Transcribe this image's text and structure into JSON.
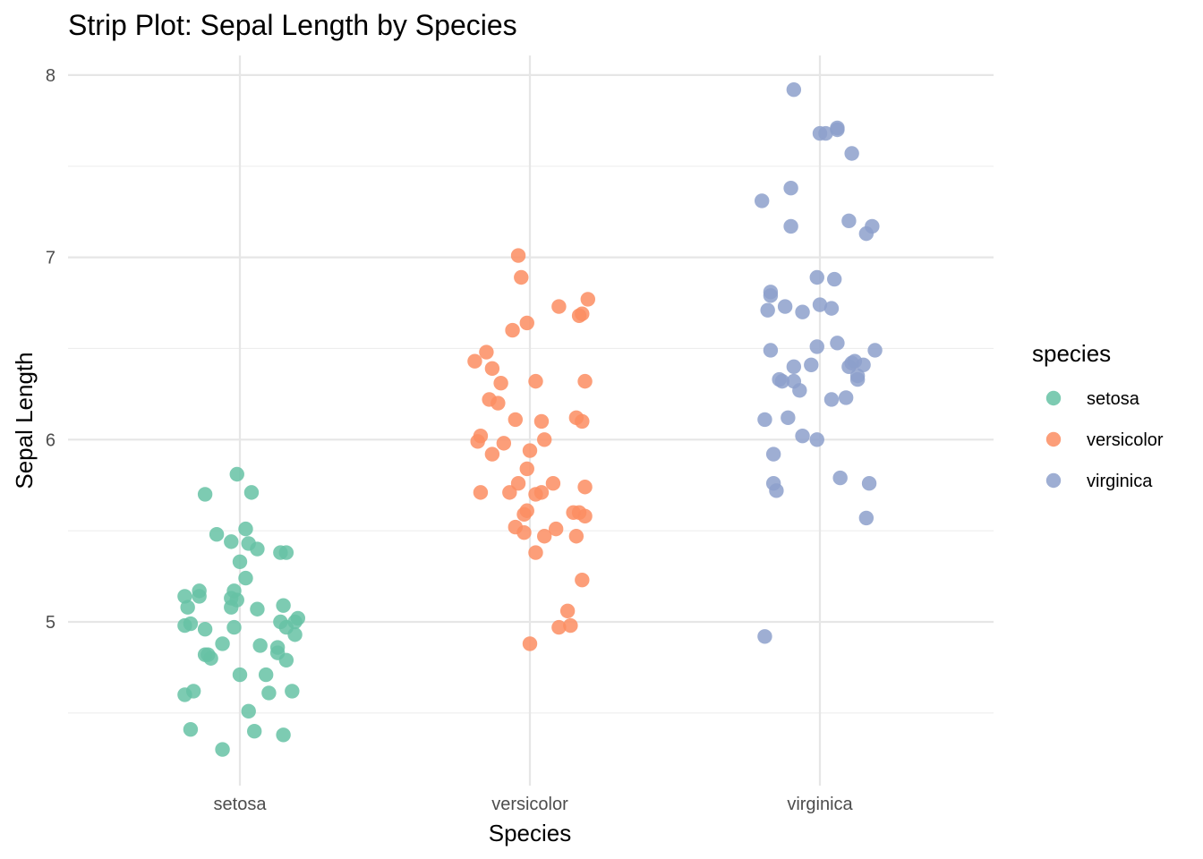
{
  "chart_data": {
    "type": "scatter",
    "title": "Strip Plot: Sepal Length by Species",
    "xlabel": "Species",
    "ylabel": "Sepal Length",
    "categories": [
      "setosa",
      "versicolor",
      "virginica"
    ],
    "y_ticks": [
      5,
      6,
      7,
      8
    ],
    "ylim": [
      4.2,
      8.1
    ],
    "grid": true,
    "legend": {
      "title": "species",
      "position": "right"
    },
    "series": [
      {
        "name": "setosa",
        "color": "#66C2A5",
        "x": [
          -0.19,
          -0.19,
          -0.19,
          -0.18,
          -0.17,
          -0.17,
          -0.16,
          -0.14,
          -0.14,
          -0.12,
          -0.12,
          -0.12,
          -0.11,
          -0.1,
          -0.08,
          -0.06,
          -0.06,
          -0.03,
          -0.03,
          -0.03,
          -0.02,
          -0.02,
          -0.01,
          -0.01,
          0.0,
          0.0,
          0.02,
          0.02,
          0.03,
          0.03,
          0.04,
          0.05,
          0.06,
          0.06,
          0.07,
          0.09,
          0.1,
          0.13,
          0.13,
          0.14,
          0.14,
          0.15,
          0.15,
          0.16,
          0.16,
          0.16,
          0.18,
          0.19,
          0.19,
          0.2
        ],
        "y": [
          5.14,
          4.98,
          4.6,
          5.08,
          4.41,
          4.99,
          4.62,
          5.17,
          5.14,
          4.96,
          5.7,
          4.82,
          4.82,
          4.8,
          5.48,
          4.3,
          4.88,
          5.08,
          5.13,
          5.44,
          5.17,
          4.97,
          5.81,
          5.12,
          5.33,
          4.71,
          5.51,
          5.24,
          5.43,
          4.51,
          5.71,
          4.4,
          5.07,
          5.4,
          4.87,
          4.71,
          4.61,
          4.83,
          4.86,
          5.0,
          5.38,
          4.38,
          5.09,
          4.97,
          4.79,
          5.38,
          4.62,
          5.0,
          4.93,
          5.02
        ]
      },
      {
        "name": "versicolor",
        "color": "#FC8D62",
        "x": [
          -0.19,
          -0.18,
          -0.17,
          -0.17,
          -0.15,
          -0.14,
          -0.13,
          -0.13,
          -0.11,
          -0.1,
          -0.09,
          -0.07,
          -0.06,
          -0.05,
          -0.05,
          -0.04,
          -0.04,
          -0.03,
          -0.02,
          -0.02,
          -0.01,
          -0.01,
          -0.01,
          0.0,
          0.0,
          0.02,
          0.02,
          0.02,
          0.04,
          0.04,
          0.05,
          0.05,
          0.08,
          0.09,
          0.1,
          0.1,
          0.13,
          0.14,
          0.15,
          0.16,
          0.16,
          0.17,
          0.17,
          0.18,
          0.18,
          0.18,
          0.19,
          0.19,
          0.19,
          0.2
        ],
        "y": [
          6.43,
          5.99,
          6.02,
          5.71,
          6.48,
          6.22,
          5.92,
          6.39,
          6.2,
          6.31,
          5.98,
          5.71,
          6.6,
          5.52,
          6.11,
          5.76,
          7.01,
          6.89,
          5.49,
          5.59,
          6.64,
          5.84,
          5.61,
          4.88,
          5.94,
          5.7,
          5.38,
          6.32,
          6.1,
          5.71,
          6.0,
          5.47,
          5.76,
          5.51,
          4.97,
          6.73,
          5.06,
          4.98,
          5.6,
          6.12,
          5.47,
          5.6,
          6.68,
          5.23,
          6.69,
          6.1,
          5.74,
          5.58,
          6.32,
          6.77
        ]
      },
      {
        "name": "virginica",
        "color": "#8DA0CB",
        "x": [
          -0.2,
          -0.19,
          -0.19,
          -0.18,
          -0.17,
          -0.17,
          -0.17,
          -0.16,
          -0.16,
          -0.15,
          -0.14,
          -0.13,
          -0.12,
          -0.11,
          -0.1,
          -0.1,
          -0.09,
          -0.09,
          -0.09,
          -0.07,
          -0.06,
          -0.06,
          -0.03,
          -0.01,
          -0.01,
          -0.01,
          0.0,
          0.0,
          0.02,
          0.04,
          0.04,
          0.05,
          0.06,
          0.06,
          0.06,
          0.07,
          0.09,
          0.1,
          0.1,
          0.11,
          0.11,
          0.12,
          0.13,
          0.13,
          0.15,
          0.16,
          0.16,
          0.17,
          0.18,
          0.19
        ],
        "y": [
          7.31,
          6.11,
          4.92,
          6.71,
          6.81,
          6.79,
          6.49,
          5.76,
          5.92,
          5.72,
          6.33,
          6.32,
          6.73,
          6.12,
          7.17,
          7.38,
          6.4,
          6.32,
          7.92,
          6.27,
          6.02,
          6.7,
          6.41,
          6.89,
          6.51,
          6.0,
          7.68,
          6.74,
          7.68,
          6.22,
          6.72,
          6.88,
          7.7,
          7.71,
          6.53,
          5.79,
          6.23,
          7.2,
          6.4,
          7.57,
          6.42,
          6.43,
          6.33,
          6.35,
          6.41,
          7.13,
          5.57,
          5.76,
          7.17,
          6.49
        ]
      }
    ]
  }
}
